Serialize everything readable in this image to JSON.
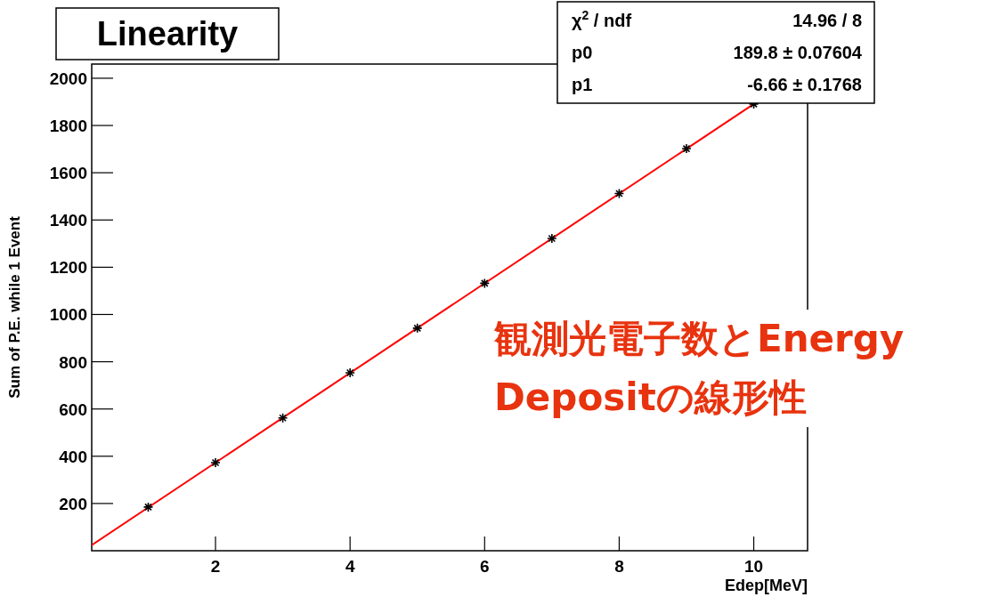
{
  "chart_data": {
    "type": "scatter",
    "title": "Linearity",
    "xlabel": "Edep[MeV]",
    "ylabel": "Sum of P.E. while 1 Event",
    "x": [
      1,
      2,
      3,
      4,
      5,
      6,
      7,
      8,
      9,
      10
    ],
    "series": [
      {
        "color": "#000000",
        "marker": "cross",
        "values": [
          185,
          373,
          562,
          753,
          942,
          1132,
          1322,
          1512,
          1702,
          1891
        ]
      },
      {
        "type": "line",
        "color": "#ff0000",
        "x": [
          0.16,
          10
        ],
        "values": [
          24,
          1891
        ]
      }
    ],
    "xlim": [
      0.16,
      10.8
    ],
    "ylim": [
      0,
      2060
    ],
    "xticks": [
      2,
      4,
      6,
      8,
      10
    ],
    "yticks": [
      200,
      400,
      600,
      800,
      1000,
      1200,
      1400,
      1600,
      1800,
      2000
    ],
    "grid": false,
    "annotations": [
      "χ$^{2}$ / ndf",
      "14.96 / 8",
      "p0",
      "189.8 ± 0.07604",
      "p1",
      "-6.66 ± 0.1768",
      "観測光電子数とEnergy Depositの線形性"
    ]
  }
}
